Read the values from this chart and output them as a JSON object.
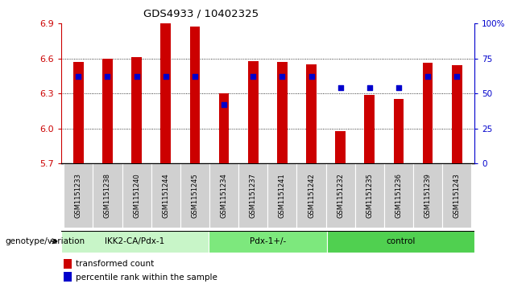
{
  "title": "GDS4933 / 10402325",
  "samples": [
    "GSM1151233",
    "GSM1151238",
    "GSM1151240",
    "GSM1151244",
    "GSM1151245",
    "GSM1151234",
    "GSM1151237",
    "GSM1151241",
    "GSM1151242",
    "GSM1151232",
    "GSM1151235",
    "GSM1151236",
    "GSM1151239",
    "GSM1151243"
  ],
  "red_values": [
    6.57,
    6.6,
    6.61,
    6.9,
    6.87,
    6.3,
    6.58,
    6.57,
    6.55,
    5.98,
    6.29,
    6.25,
    6.56,
    6.54
  ],
  "blue_percentiles": [
    62,
    62,
    62,
    62,
    62,
    42,
    62,
    62,
    62,
    54,
    54,
    54,
    62,
    62
  ],
  "y_min": 5.7,
  "y_max": 6.9,
  "y_ticks": [
    5.7,
    6.0,
    6.3,
    6.6,
    6.9
  ],
  "right_y_ticks": [
    0,
    25,
    50,
    75,
    100
  ],
  "groups": [
    {
      "label": "IKK2-CA/Pdx-1",
      "start": 0,
      "end": 5,
      "color": "#c8f5c8"
    },
    {
      "label": "Pdx-1+/-",
      "start": 5,
      "end": 9,
      "color": "#7de87d"
    },
    {
      "label": "control",
      "start": 9,
      "end": 14,
      "color": "#50d050"
    }
  ],
  "bar_color": "#cc0000",
  "dot_color": "#0000cc",
  "legend_label_red": "transformed count",
  "legend_label_blue": "percentile rank within the sample",
  "genotype_label": "genotype/variation",
  "sample_box_color": "#d0d0d0",
  "plot_bg": "#ffffff",
  "left_axis_color": "#cc0000",
  "right_axis_color": "#0000cc",
  "bar_width": 0.35
}
